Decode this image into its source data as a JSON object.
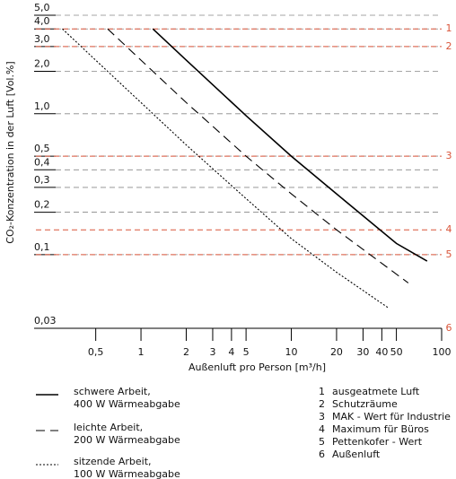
{
  "chart_data": {
    "type": "line",
    "x_label": "Außenluft pro Person [m³/h]",
    "y_label": "CO₂-Konzentration in der Luft [Vol.%]",
    "x_scale": "log",
    "y_scale": "log",
    "xlim": [
      0.2,
      100
    ],
    "ylim": [
      0.03,
      5
    ],
    "xticks": [
      {
        "value": 0.5,
        "label": "0,5"
      },
      1,
      2,
      3,
      4,
      5,
      10,
      20,
      30,
      40,
      50,
      100
    ],
    "yticks": [
      {
        "value": 5,
        "label": "5,0"
      },
      {
        "value": 4,
        "label": "4,0"
      },
      {
        "value": 3,
        "label": "3,0"
      },
      {
        "value": 2,
        "label": "2,0"
      },
      {
        "value": 1,
        "label": "1,0"
      },
      {
        "value": 0.5,
        "label": "0,5"
      },
      {
        "value": 0.4,
        "label": "0,4"
      },
      {
        "value": 0.3,
        "label": "0,3"
      },
      {
        "value": 0.2,
        "label": "0,2"
      },
      {
        "value": 0.1,
        "label": "0,1"
      },
      {
        "value": 0.03,
        "label": "0,03"
      }
    ],
    "grid": true,
    "grid_color": "#888888",
    "series": [
      {
        "name": [
          "schwere Arbeit,",
          "400 W Wärmeabgabe"
        ],
        "color": "#000000",
        "dash": "solid",
        "x": [
          1.2,
          2,
          5,
          10,
          20,
          50,
          80
        ],
        "values": [
          4.0,
          2.4,
          0.97,
          0.5,
          0.27,
          0.12,
          0.09
        ]
      },
      {
        "name": [
          "leichte Arbeit,",
          "200 W Wärmeabgabe"
        ],
        "color": "#000000",
        "dash": "dashed",
        "x": [
          0.6,
          1,
          2,
          5,
          10,
          20,
          60
        ],
        "values": [
          4.0,
          2.4,
          1.2,
          0.5,
          0.27,
          0.15,
          0.063
        ]
      },
      {
        "name": [
          "sitzende Arbeit,",
          "100 W Wärmeabgabe"
        ],
        "color": "#000000",
        "dash": "dotted",
        "x": [
          0.3,
          0.5,
          1,
          2,
          5,
          10,
          20,
          44
        ],
        "values": [
          4.0,
          2.4,
          1.2,
          0.6,
          0.25,
          0.13,
          0.075,
          0.042
        ]
      }
    ],
    "reference_color": "#d9553a",
    "reference_lines": [
      {
        "label": "1",
        "name": "ausgeatmete Luft",
        "value": 4
      },
      {
        "label": "2",
        "name": "Schutzräume",
        "value": 3
      },
      {
        "label": "3",
        "name": "MAK - Wert für Industrie",
        "value": 0.5
      },
      {
        "label": "4",
        "name": "Maximum für Büros",
        "value": 0.15
      },
      {
        "label": "5",
        "name": "Pettenkofer - Wert",
        "value": 0.1
      },
      {
        "label": "6",
        "name": "Außenluft",
        "value": 0.03
      }
    ]
  }
}
